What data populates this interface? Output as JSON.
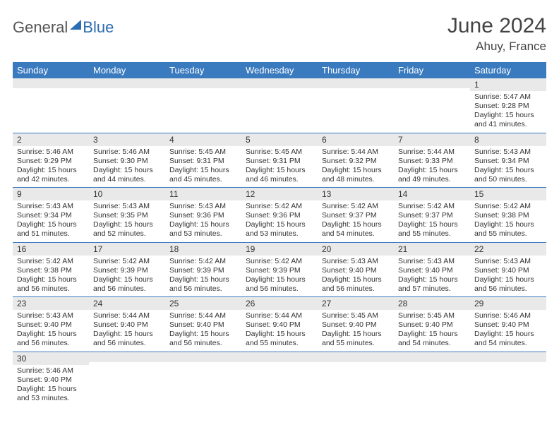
{
  "brand": {
    "part1": "General",
    "part2": "Blue"
  },
  "title": "June 2024",
  "location": "Ahuy, France",
  "colors": {
    "header_bg": "#3a7abf",
    "header_text": "#ffffff",
    "daynum_bg": "#e9e9e9",
    "border": "#3a7abf",
    "brand_blue": "#2c6cb0",
    "text": "#333333"
  },
  "weekdays": [
    "Sunday",
    "Monday",
    "Tuesday",
    "Wednesday",
    "Thursday",
    "Friday",
    "Saturday"
  ],
  "weeks": [
    [
      {
        "n": "",
        "sr": "",
        "ss": "",
        "dl": ""
      },
      {
        "n": "",
        "sr": "",
        "ss": "",
        "dl": ""
      },
      {
        "n": "",
        "sr": "",
        "ss": "",
        "dl": ""
      },
      {
        "n": "",
        "sr": "",
        "ss": "",
        "dl": ""
      },
      {
        "n": "",
        "sr": "",
        "ss": "",
        "dl": ""
      },
      {
        "n": "",
        "sr": "",
        "ss": "",
        "dl": ""
      },
      {
        "n": "1",
        "sr": "Sunrise: 5:47 AM",
        "ss": "Sunset: 9:28 PM",
        "dl": "Daylight: 15 hours and 41 minutes."
      }
    ],
    [
      {
        "n": "2",
        "sr": "Sunrise: 5:46 AM",
        "ss": "Sunset: 9:29 PM",
        "dl": "Daylight: 15 hours and 42 minutes."
      },
      {
        "n": "3",
        "sr": "Sunrise: 5:46 AM",
        "ss": "Sunset: 9:30 PM",
        "dl": "Daylight: 15 hours and 44 minutes."
      },
      {
        "n": "4",
        "sr": "Sunrise: 5:45 AM",
        "ss": "Sunset: 9:31 PM",
        "dl": "Daylight: 15 hours and 45 minutes."
      },
      {
        "n": "5",
        "sr": "Sunrise: 5:45 AM",
        "ss": "Sunset: 9:31 PM",
        "dl": "Daylight: 15 hours and 46 minutes."
      },
      {
        "n": "6",
        "sr": "Sunrise: 5:44 AM",
        "ss": "Sunset: 9:32 PM",
        "dl": "Daylight: 15 hours and 48 minutes."
      },
      {
        "n": "7",
        "sr": "Sunrise: 5:44 AM",
        "ss": "Sunset: 9:33 PM",
        "dl": "Daylight: 15 hours and 49 minutes."
      },
      {
        "n": "8",
        "sr": "Sunrise: 5:43 AM",
        "ss": "Sunset: 9:34 PM",
        "dl": "Daylight: 15 hours and 50 minutes."
      }
    ],
    [
      {
        "n": "9",
        "sr": "Sunrise: 5:43 AM",
        "ss": "Sunset: 9:34 PM",
        "dl": "Daylight: 15 hours and 51 minutes."
      },
      {
        "n": "10",
        "sr": "Sunrise: 5:43 AM",
        "ss": "Sunset: 9:35 PM",
        "dl": "Daylight: 15 hours and 52 minutes."
      },
      {
        "n": "11",
        "sr": "Sunrise: 5:43 AM",
        "ss": "Sunset: 9:36 PM",
        "dl": "Daylight: 15 hours and 53 minutes."
      },
      {
        "n": "12",
        "sr": "Sunrise: 5:42 AM",
        "ss": "Sunset: 9:36 PM",
        "dl": "Daylight: 15 hours and 53 minutes."
      },
      {
        "n": "13",
        "sr": "Sunrise: 5:42 AM",
        "ss": "Sunset: 9:37 PM",
        "dl": "Daylight: 15 hours and 54 minutes."
      },
      {
        "n": "14",
        "sr": "Sunrise: 5:42 AM",
        "ss": "Sunset: 9:37 PM",
        "dl": "Daylight: 15 hours and 55 minutes."
      },
      {
        "n": "15",
        "sr": "Sunrise: 5:42 AM",
        "ss": "Sunset: 9:38 PM",
        "dl": "Daylight: 15 hours and 55 minutes."
      }
    ],
    [
      {
        "n": "16",
        "sr": "Sunrise: 5:42 AM",
        "ss": "Sunset: 9:38 PM",
        "dl": "Daylight: 15 hours and 56 minutes."
      },
      {
        "n": "17",
        "sr": "Sunrise: 5:42 AM",
        "ss": "Sunset: 9:39 PM",
        "dl": "Daylight: 15 hours and 56 minutes."
      },
      {
        "n": "18",
        "sr": "Sunrise: 5:42 AM",
        "ss": "Sunset: 9:39 PM",
        "dl": "Daylight: 15 hours and 56 minutes."
      },
      {
        "n": "19",
        "sr": "Sunrise: 5:42 AM",
        "ss": "Sunset: 9:39 PM",
        "dl": "Daylight: 15 hours and 56 minutes."
      },
      {
        "n": "20",
        "sr": "Sunrise: 5:43 AM",
        "ss": "Sunset: 9:40 PM",
        "dl": "Daylight: 15 hours and 56 minutes."
      },
      {
        "n": "21",
        "sr": "Sunrise: 5:43 AM",
        "ss": "Sunset: 9:40 PM",
        "dl": "Daylight: 15 hours and 57 minutes."
      },
      {
        "n": "22",
        "sr": "Sunrise: 5:43 AM",
        "ss": "Sunset: 9:40 PM",
        "dl": "Daylight: 15 hours and 56 minutes."
      }
    ],
    [
      {
        "n": "23",
        "sr": "Sunrise: 5:43 AM",
        "ss": "Sunset: 9:40 PM",
        "dl": "Daylight: 15 hours and 56 minutes."
      },
      {
        "n": "24",
        "sr": "Sunrise: 5:44 AM",
        "ss": "Sunset: 9:40 PM",
        "dl": "Daylight: 15 hours and 56 minutes."
      },
      {
        "n": "25",
        "sr": "Sunrise: 5:44 AM",
        "ss": "Sunset: 9:40 PM",
        "dl": "Daylight: 15 hours and 56 minutes."
      },
      {
        "n": "26",
        "sr": "Sunrise: 5:44 AM",
        "ss": "Sunset: 9:40 PM",
        "dl": "Daylight: 15 hours and 55 minutes."
      },
      {
        "n": "27",
        "sr": "Sunrise: 5:45 AM",
        "ss": "Sunset: 9:40 PM",
        "dl": "Daylight: 15 hours and 55 minutes."
      },
      {
        "n": "28",
        "sr": "Sunrise: 5:45 AM",
        "ss": "Sunset: 9:40 PM",
        "dl": "Daylight: 15 hours and 54 minutes."
      },
      {
        "n": "29",
        "sr": "Sunrise: 5:46 AM",
        "ss": "Sunset: 9:40 PM",
        "dl": "Daylight: 15 hours and 54 minutes."
      }
    ],
    [
      {
        "n": "30",
        "sr": "Sunrise: 5:46 AM",
        "ss": "Sunset: 9:40 PM",
        "dl": "Daylight: 15 hours and 53 minutes."
      },
      {
        "n": "",
        "sr": "",
        "ss": "",
        "dl": ""
      },
      {
        "n": "",
        "sr": "",
        "ss": "",
        "dl": ""
      },
      {
        "n": "",
        "sr": "",
        "ss": "",
        "dl": ""
      },
      {
        "n": "",
        "sr": "",
        "ss": "",
        "dl": ""
      },
      {
        "n": "",
        "sr": "",
        "ss": "",
        "dl": ""
      },
      {
        "n": "",
        "sr": "",
        "ss": "",
        "dl": ""
      }
    ]
  ]
}
